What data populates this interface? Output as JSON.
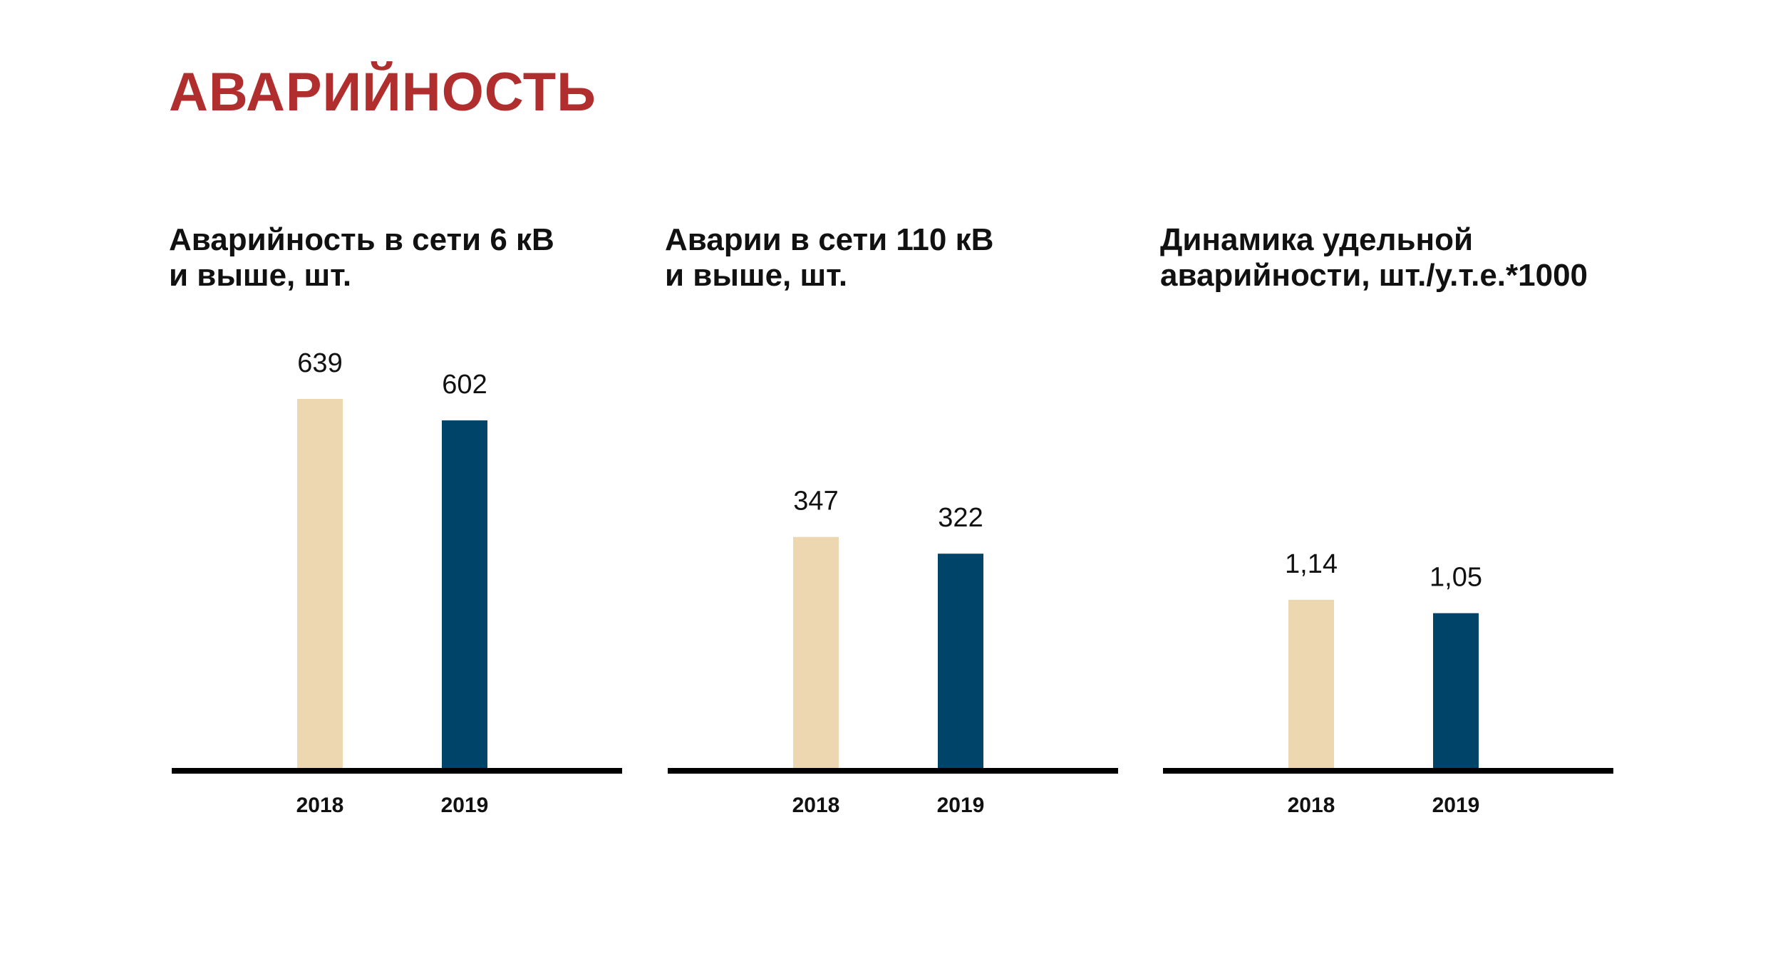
{
  "page": {
    "title": "АВАРИЙНОСТЬ"
  },
  "colors": {
    "title": "#b02e2e",
    "bar_2018": "#edd7b0",
    "bar_2019": "#00446a",
    "axis": "#000000"
  },
  "chart_data": [
    {
      "type": "bar",
      "title": "Аварийность в сети 6 кВ\nи выше, шт.",
      "categories": [
        "2018",
        "2019"
      ],
      "values": [
        639,
        602
      ],
      "value_labels": [
        "639",
        "602"
      ],
      "ylim": [
        0,
        639
      ]
    },
    {
      "type": "bar",
      "title": "Аварии в сети 110 кВ\nи выше, шт.",
      "categories": [
        "2018",
        "2019"
      ],
      "values": [
        347,
        322
      ],
      "value_labels": [
        "347",
        "322"
      ],
      "ylim": [
        0,
        553
      ]
    },
    {
      "type": "bar",
      "title": "Динамика удельной\nаварийности, шт./у.т.е.*1000",
      "categories": [
        "2018",
        "2019"
      ],
      "values": [
        1.14,
        1.05
      ],
      "value_labels": [
        "1,14",
        "1,05"
      ],
      "ylim": [
        0,
        2.49
      ]
    }
  ]
}
